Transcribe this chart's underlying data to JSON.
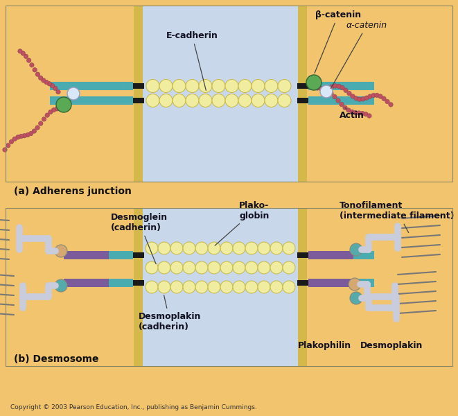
{
  "bg_orange": "#F2C46D",
  "bg_blue": "#C8D8EA",
  "cell_wall_color": "#D4B84A",
  "membrane_black": "#1A1A1A",
  "teal_bar": "#4AABB0",
  "purple_bar": "#7B5B9A",
  "bead_fill": "#F0ECA0",
  "bead_outline": "#C8B840",
  "actin_color": "#C05060",
  "green_ball": "#5AAA55",
  "white_ball": "#D8E8F8",
  "tan_ball": "#D4A870",
  "teal_ball": "#55AAAA",
  "plak_color": "#C8CCDC",
  "title_a": "(a) Adherens junction",
  "title_b": "(b) Desmosome",
  "copyright": "Copyright © 2003 Pearson Education, Inc., publishing as Benjamin Cummings.",
  "label_ecadherin": "E-cadherin",
  "label_beta": "β-catenin",
  "label_alpha": "α-catenin",
  "label_actin": "Actin",
  "label_desmoglein": "Desmoglein\n(cadherin)",
  "label_plakoglobin": "Plako-\nglobin",
  "label_desmoplakin_cad": "Desmoplakin\n(cadherin)",
  "label_tonofilament": "Tonofilament\n(intermediate filament)",
  "label_plakophilin": "Plakophilin",
  "label_desmoplakin": "Desmoplakin"
}
